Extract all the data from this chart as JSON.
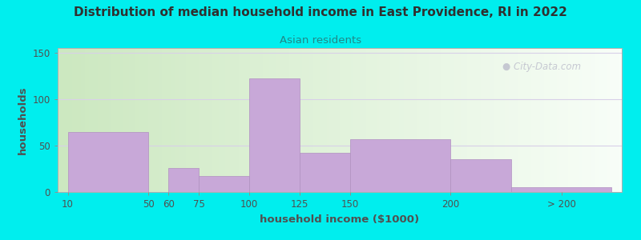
{
  "title": "Distribution of median household income in East Providence, RI in 2022",
  "subtitle": "Asian residents",
  "xlabel": "household income ($1000)",
  "ylabel": "households",
  "background_outer": "#00EEEE",
  "background_inner": "#e8f5e0",
  "bar_color": "#c8a8d8",
  "bar_edge_color": "#b090c0",
  "title_color": "#303030",
  "subtitle_color": "#208888",
  "axis_label_color": "#505050",
  "watermark_color": "#b8b8c8",
  "values": [
    65,
    0,
    26,
    17,
    122,
    42,
    57,
    35,
    5
  ],
  "bar_lefts": [
    10,
    50,
    60,
    75,
    100,
    125,
    150,
    200,
    230
  ],
  "bar_widths": [
    40,
    10,
    15,
    25,
    25,
    25,
    50,
    30,
    50
  ],
  "ylim": [
    0,
    155
  ],
  "yticks": [
    0,
    50,
    100,
    150
  ],
  "xtick_positions": [
    10,
    50,
    60,
    75,
    100,
    125,
    150,
    200,
    255
  ],
  "xtick_labels": [
    "10",
    "50",
    "60",
    "75",
    "100",
    "125",
    "150",
    "200",
    "> 200"
  ],
  "xlim": [
    5,
    285
  ]
}
